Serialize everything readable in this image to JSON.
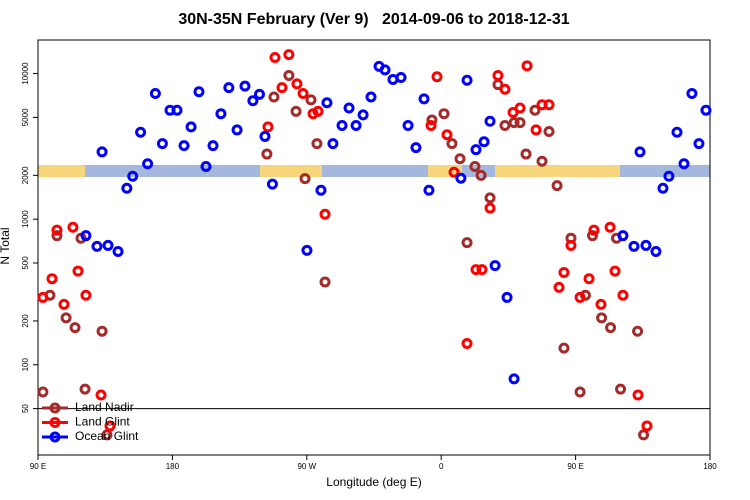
{
  "chart_data": {
    "type": "scatter",
    "title": "30N-35N February (Ver 9)   2014-09-06 to 2018-12-31",
    "x_label": "Longitude (deg E)",
    "y_label": "N Total",
    "xlim": [
      90,
      540
    ],
    "xticks": [
      {
        "value": 90,
        "label": "90 E"
      },
      180,
      {
        "value": 270,
        "label": "90 W"
      },
      {
        "value": 360,
        "label": "0"
      },
      {
        "value": 450,
        "label": "90 E"
      },
      {
        "value": 540,
        "label": "180"
      }
    ],
    "ylim": [
      24,
      17000
    ],
    "log_y": true,
    "yticks": [
      50,
      100,
      200,
      500,
      1000,
      2000,
      5000,
      10000
    ],
    "hline": 50,
    "legend": "bottom-left",
    "series": [
      {
        "name": "Land Nadir",
        "color": "#a52a2a",
        "x": [
          93.3,
          98,
          102.7,
          108.8,
          114.8,
          118.8,
          121.5,
          132.9,
          136.2,
          248,
          243.3,
          258,
          262.8,
          268.8,
          272.8,
          276.8,
          282.2,
          353.8,
          361.9,
          367.2,
          372.6,
          377.3,
          382.6,
          386.7,
          392.7,
          398,
          402.7,
          408.8,
          412.8,
          416.8,
          422.8,
          427.5,
          432.2,
          437.6,
          442.2,
          446.9,
          453,
          456.6,
          461.3,
          467.4,
          473.4,
          477.4,
          480.1,
          491.5,
          495.5
        ],
        "values": [
          65,
          300,
          770,
          210,
          180,
          740,
          68,
          170,
          33,
          6900,
          2800,
          9700,
          5500,
          1900,
          6600,
          3300,
          370,
          4800,
          5300,
          3300,
          2600,
          690,
          2300,
          2000,
          1400,
          8400,
          4400,
          4600,
          4600,
          2800,
          5600,
          2500,
          4000,
          1700,
          130,
          740,
          65,
          300,
          770,
          210,
          180,
          740,
          68,
          170,
          33
        ]
      },
      {
        "name": "Land Glint",
        "color": "#ff0000",
        "x": [
          93.3,
          99.4,
          102.7,
          107.4,
          113.4,
          116.8,
          122.1,
          132.2,
          138.2,
          244,
          248.7,
          253.4,
          258,
          263.4,
          267.5,
          274.2,
          277.5,
          282.2,
          357.2,
          353.2,
          363.9,
          368.6,
          377.3,
          383.3,
          387.3,
          392.7,
          398,
          402.7,
          408.1,
          412.8,
          417.5,
          423.5,
          427.5,
          432.2,
          438.9,
          442.2,
          446.9,
          453,
          459,
          462.3,
          467,
          473.1,
          476.4,
          481.7,
          491.8,
          497.8
        ],
        "values": [
          290,
          390,
          840,
          260,
          880,
          440,
          300,
          62,
          38,
          4300,
          12900,
          8000,
          13500,
          8500,
          7300,
          5300,
          5500,
          1080,
          9500,
          4400,
          3800,
          2100,
          140,
          450,
          450,
          1190,
          9700,
          7800,
          5400,
          5800,
          11300,
          4100,
          6100,
          6100,
          340,
          430,
          660,
          290,
          390,
          840,
          260,
          880,
          440,
          300,
          62,
          38
        ]
      },
      {
        "name": "Ocean Glint",
        "color": "#0000ff",
        "x": [
          132.9,
          122.1,
          129.5,
          136.9,
          143.6,
          149.5,
          153.4,
          158.7,
          163.4,
          168.6,
          173.3,
          178.4,
          183.1,
          187.8,
          192.5,
          197.8,
          202.5,
          207.2,
          212.5,
          217.8,
          223.3,
          228.6,
          233.9,
          238.3,
          242,
          247,
          270.1,
          279.5,
          283.5,
          287.5,
          293.6,
          298.3,
          303,
          307.7,
          313,
          318.4,
          322.4,
          327.7,
          333.1,
          337.8,
          343.1,
          348.5,
          351.8,
          373.2,
          377.3,
          383.3,
          388.7,
          392.7,
          396.1,
          404.1,
          408.8,
          481.7,
          489.1,
          493.1,
          497.1,
          503.8,
          508.5,
          512.5,
          517.9,
          522.6,
          527.9,
          532.6,
          537.3
        ],
        "values": [
          2900,
          770,
          650,
          660,
          600,
          1630,
          1970,
          3950,
          2400,
          7300,
          3300,
          5600,
          5600,
          3200,
          4300,
          7500,
          2300,
          3200,
          5300,
          8000,
          4100,
          8200,
          6500,
          7200,
          3700,
          1740,
          610,
          1580,
          6300,
          3300,
          4400,
          5800,
          4400,
          5200,
          6900,
          11200,
          10600,
          9100,
          9400,
          4400,
          3100,
          6700,
          1580,
          1910,
          9000,
          3000,
          3400,
          4700,
          480,
          290,
          80,
          770,
          650,
          2900,
          660,
          600,
          1630,
          1970,
          3950,
          2400,
          7300,
          3300,
          5600
        ]
      }
    ]
  }
}
